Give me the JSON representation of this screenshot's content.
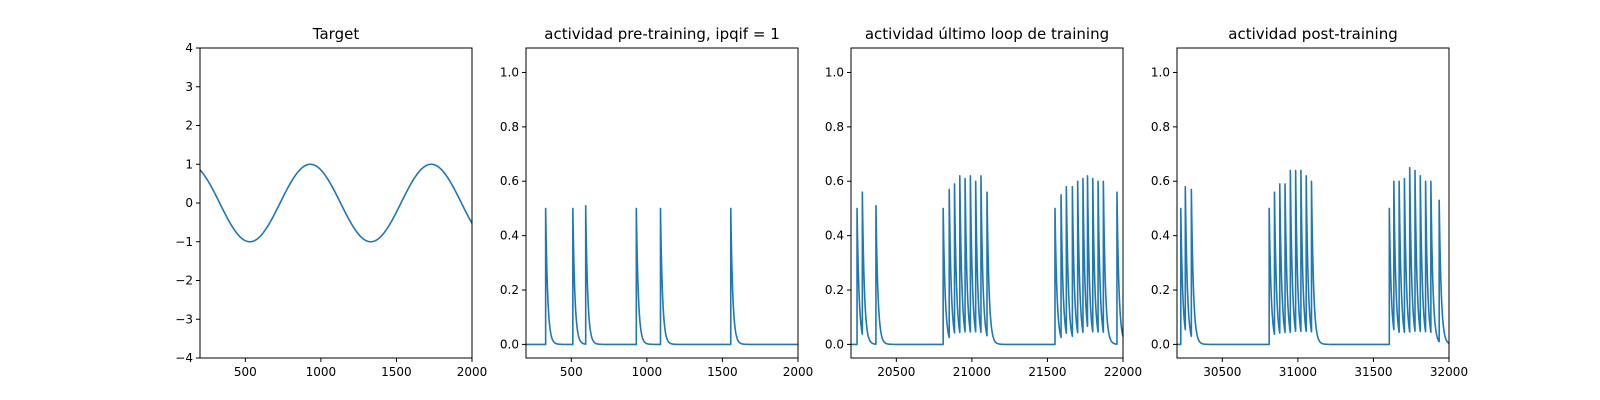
{
  "chart_data": [
    {
      "type": "line",
      "title": "Target",
      "xlim": [
        200,
        2000
      ],
      "ylim": [
        -4,
        4
      ],
      "xticks": [
        500,
        1000,
        1500,
        2000
      ],
      "yticks": [
        -4,
        -3,
        -2,
        -1,
        0,
        1,
        2,
        3,
        4
      ],
      "xtick_labels": [
        "500",
        "1000",
        "1500",
        "2000"
      ],
      "ytick_labels": [
        "−4",
        "−3",
        "−2",
        "−1",
        "0",
        "1",
        "2",
        "3",
        "4"
      ],
      "wave": {
        "amplitude": 1.0,
        "period": 800,
        "peaks": [
          930,
          1730
        ]
      },
      "color": "#1f77b4"
    },
    {
      "type": "line",
      "title": "actividad pre-training, ipqif = 1",
      "xlim": [
        200,
        2000
      ],
      "ylim": [
        -0.05,
        1.09
      ],
      "xticks": [
        500,
        1000,
        1500,
        2000
      ],
      "yticks": [
        0.0,
        0.2,
        0.4,
        0.6,
        0.8,
        1.0
      ],
      "xtick_labels": [
        "500",
        "1000",
        "1500",
        "2000"
      ],
      "ytick_labels": [
        "0.0",
        "0.2",
        "0.4",
        "0.6",
        "0.8",
        "1.0"
      ],
      "spikes": [
        [
          330,
          0.5
        ],
        [
          510,
          0.5
        ],
        [
          595,
          0.51
        ],
        [
          930,
          0.5
        ],
        [
          1090,
          0.5
        ],
        [
          1555,
          0.5
        ]
      ],
      "color": "#1f77b4"
    },
    {
      "type": "line",
      "title": "actividad último loop de training",
      "xlim": [
        20200,
        22000
      ],
      "ylim": [
        -0.05,
        1.09
      ],
      "xticks": [
        20500,
        21000,
        21500,
        22000
      ],
      "yticks": [
        0.0,
        0.2,
        0.4,
        0.6,
        0.8,
        1.0
      ],
      "xtick_labels": [
        "20500",
        "21000",
        "21500",
        "22000"
      ],
      "ytick_labels": [
        "0.0",
        "0.2",
        "0.4",
        "0.6",
        "0.8",
        "1.0"
      ],
      "spikes": [
        [
          20240,
          0.5
        ],
        [
          20275,
          0.56
        ],
        [
          20365,
          0.51
        ],
        [
          20810,
          0.5
        ],
        [
          20850,
          0.57
        ],
        [
          20885,
          0.59
        ],
        [
          20920,
          0.62
        ],
        [
          20955,
          0.61
        ],
        [
          20990,
          0.62
        ],
        [
          21025,
          0.6
        ],
        [
          21060,
          0.62
        ],
        [
          21100,
          0.56
        ],
        [
          21550,
          0.5
        ],
        [
          21590,
          0.55
        ],
        [
          21625,
          0.58
        ],
        [
          21665,
          0.58
        ],
        [
          21700,
          0.6
        ],
        [
          21735,
          0.61
        ],
        [
          21765,
          0.62
        ],
        [
          21800,
          0.61
        ],
        [
          21835,
          0.6
        ],
        [
          21870,
          0.6
        ],
        [
          21960,
          0.56
        ]
      ],
      "color": "#1f77b4"
    },
    {
      "type": "line",
      "title": "actividad post-training",
      "xlim": [
        30200,
        32000
      ],
      "ylim": [
        -0.05,
        1.09
      ],
      "xticks": [
        30500,
        31000,
        31500,
        32000
      ],
      "yticks": [
        0.0,
        0.2,
        0.4,
        0.6,
        0.8,
        1.0
      ],
      "xtick_labels": [
        "30500",
        "31000",
        "31500",
        "32000"
      ],
      "ytick_labels": [
        "0.0",
        "0.2",
        "0.4",
        "0.6",
        "0.8",
        "1.0"
      ],
      "spikes": [
        [
          30225,
          0.5
        ],
        [
          30255,
          0.58
        ],
        [
          30295,
          0.57
        ],
        [
          30810,
          0.5
        ],
        [
          30845,
          0.56
        ],
        [
          30880,
          0.59
        ],
        [
          30915,
          0.59
        ],
        [
          30950,
          0.64
        ],
        [
          30985,
          0.64
        ],
        [
          31020,
          0.64
        ],
        [
          31055,
          0.62
        ],
        [
          31090,
          0.6
        ],
        [
          31605,
          0.5
        ],
        [
          31635,
          0.6
        ],
        [
          31670,
          0.6
        ],
        [
          31705,
          0.61
        ],
        [
          31740,
          0.65
        ],
        [
          31775,
          0.64
        ],
        [
          31810,
          0.62
        ],
        [
          31845,
          0.6
        ],
        [
          31880,
          0.6
        ],
        [
          31935,
          0.53
        ]
      ],
      "color": "#1f77b4"
    }
  ]
}
